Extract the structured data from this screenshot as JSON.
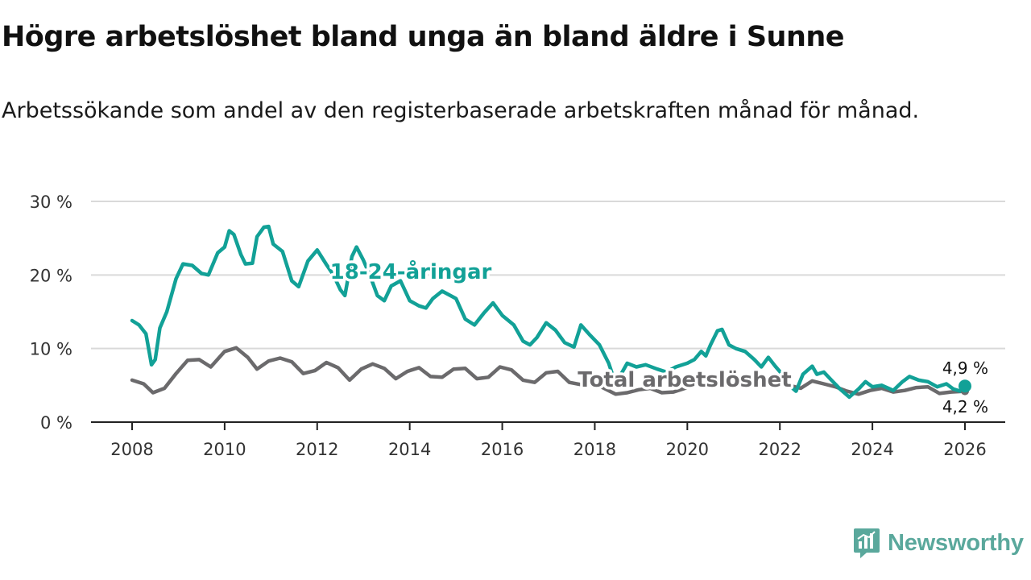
{
  "header": {
    "title": "Högre arbetslöshet bland unga än bland äldre i Sunne",
    "subtitle": "Arbetssökande som andel av den registerbaserade arbetskraften månad för månad."
  },
  "brand": {
    "name": "Newsworthy",
    "color": "#5aa89c"
  },
  "colors": {
    "youth": "#12a197",
    "total": "#6b6a6c",
    "grid": "#d9d9d9",
    "axis": "#222222"
  },
  "chart_data": {
    "type": "line",
    "title": "Högre arbetslöshet bland unga än bland äldre i Sunne",
    "xlabel": "",
    "ylabel": "",
    "xlim": [
      2008,
      2026
    ],
    "ylim": [
      0,
      30
    ],
    "grid": true,
    "x_ticks": [
      2008,
      2010,
      2012,
      2014,
      2016,
      2018,
      2020,
      2022,
      2024,
      2026
    ],
    "x_tick_labels": [
      "2008",
      "2010",
      "2012",
      "2014",
      "2016",
      "2018",
      "2020",
      "2022",
      "2024",
      "2026"
    ],
    "y_ticks": [
      0,
      10,
      20,
      30
    ],
    "y_tick_labels": [
      "0 %",
      "10 %",
      "20 %",
      "30 %"
    ],
    "series": [
      {
        "name": "Total arbetslöshet",
        "label": "Total arbetslöshet",
        "points": [
          [
            2008.0,
            5.7
          ],
          [
            2008.25,
            5.2
          ],
          [
            2008.45,
            4.0
          ],
          [
            2008.7,
            4.6
          ],
          [
            2008.95,
            6.6
          ],
          [
            2009.2,
            8.4
          ],
          [
            2009.45,
            8.5
          ],
          [
            2009.7,
            7.5
          ],
          [
            2010.0,
            9.6
          ],
          [
            2010.25,
            10.1
          ],
          [
            2010.5,
            8.8
          ],
          [
            2010.7,
            7.2
          ],
          [
            2010.95,
            8.3
          ],
          [
            2011.2,
            8.7
          ],
          [
            2011.45,
            8.2
          ],
          [
            2011.7,
            6.6
          ],
          [
            2011.95,
            7.0
          ],
          [
            2012.2,
            8.1
          ],
          [
            2012.45,
            7.4
          ],
          [
            2012.7,
            5.7
          ],
          [
            2012.95,
            7.2
          ],
          [
            2013.2,
            7.9
          ],
          [
            2013.45,
            7.3
          ],
          [
            2013.7,
            5.9
          ],
          [
            2013.95,
            6.9
          ],
          [
            2014.2,
            7.4
          ],
          [
            2014.45,
            6.2
          ],
          [
            2014.7,
            6.1
          ],
          [
            2014.95,
            7.2
          ],
          [
            2015.2,
            7.3
          ],
          [
            2015.45,
            5.9
          ],
          [
            2015.7,
            6.1
          ],
          [
            2015.95,
            7.5
          ],
          [
            2016.2,
            7.1
          ],
          [
            2016.45,
            5.7
          ],
          [
            2016.7,
            5.4
          ],
          [
            2016.95,
            6.7
          ],
          [
            2017.2,
            6.9
          ],
          [
            2017.45,
            5.4
          ],
          [
            2017.7,
            5.1
          ],
          [
            2017.95,
            5.3
          ],
          [
            2018.2,
            4.6
          ],
          [
            2018.45,
            3.8
          ],
          [
            2018.7,
            4.0
          ],
          [
            2018.95,
            4.4
          ],
          [
            2019.2,
            4.6
          ],
          [
            2019.45,
            4.0
          ],
          [
            2019.7,
            4.1
          ],
          [
            2019.95,
            4.6
          ],
          [
            2020.2,
            5.0
          ],
          [
            2020.45,
            4.8
          ],
          [
            2020.7,
            5.4
          ],
          [
            2020.95,
            6.0
          ],
          [
            2021.2,
            5.7
          ],
          [
            2021.45,
            5.2
          ],
          [
            2021.7,
            5.0
          ],
          [
            2021.95,
            5.3
          ],
          [
            2022.2,
            5.0
          ],
          [
            2022.45,
            4.6
          ],
          [
            2022.7,
            5.6
          ],
          [
            2022.95,
            5.2
          ],
          [
            2023.2,
            4.8
          ],
          [
            2023.45,
            4.2
          ],
          [
            2023.7,
            3.8
          ],
          [
            2023.95,
            4.3
          ],
          [
            2024.2,
            4.6
          ],
          [
            2024.45,
            4.1
          ],
          [
            2024.7,
            4.3
          ],
          [
            2024.95,
            4.7
          ],
          [
            2025.2,
            4.8
          ],
          [
            2025.45,
            3.9
          ],
          [
            2025.7,
            4.1
          ],
          [
            2026.0,
            4.2
          ]
        ]
      },
      {
        "name": "18-24-åringar",
        "label": "18-24-åringar",
        "points": [
          [
            2008.0,
            13.8
          ],
          [
            2008.15,
            13.2
          ],
          [
            2008.3,
            12.0
          ],
          [
            2008.42,
            7.8
          ],
          [
            2008.5,
            8.5
          ],
          [
            2008.6,
            12.8
          ],
          [
            2008.75,
            15.0
          ],
          [
            2008.95,
            19.5
          ],
          [
            2009.1,
            21.5
          ],
          [
            2009.3,
            21.3
          ],
          [
            2009.5,
            20.2
          ],
          [
            2009.65,
            20.0
          ],
          [
            2009.85,
            23.0
          ],
          [
            2010.0,
            23.8
          ],
          [
            2010.1,
            26.0
          ],
          [
            2010.2,
            25.5
          ],
          [
            2010.35,
            22.8
          ],
          [
            2010.45,
            21.5
          ],
          [
            2010.6,
            21.6
          ],
          [
            2010.7,
            25.2
          ],
          [
            2010.85,
            26.5
          ],
          [
            2010.95,
            26.6
          ],
          [
            2011.05,
            24.2
          ],
          [
            2011.25,
            23.2
          ],
          [
            2011.45,
            19.2
          ],
          [
            2011.6,
            18.4
          ],
          [
            2011.8,
            21.9
          ],
          [
            2012.0,
            23.4
          ],
          [
            2012.2,
            21.4
          ],
          [
            2012.35,
            20.0
          ],
          [
            2012.5,
            18.0
          ],
          [
            2012.6,
            17.2
          ],
          [
            2012.75,
            22.5
          ],
          [
            2012.85,
            23.8
          ],
          [
            2013.0,
            22.0
          ],
          [
            2013.15,
            19.8
          ],
          [
            2013.3,
            17.2
          ],
          [
            2013.45,
            16.5
          ],
          [
            2013.6,
            18.5
          ],
          [
            2013.8,
            19.2
          ],
          [
            2014.0,
            16.5
          ],
          [
            2014.2,
            15.8
          ],
          [
            2014.35,
            15.5
          ],
          [
            2014.5,
            16.8
          ],
          [
            2014.7,
            17.8
          ],
          [
            2014.85,
            17.3
          ],
          [
            2015.0,
            16.8
          ],
          [
            2015.2,
            14.0
          ],
          [
            2015.4,
            13.2
          ],
          [
            2015.6,
            14.8
          ],
          [
            2015.8,
            16.2
          ],
          [
            2016.0,
            14.5
          ],
          [
            2016.25,
            13.2
          ],
          [
            2016.45,
            11.0
          ],
          [
            2016.6,
            10.5
          ],
          [
            2016.75,
            11.5
          ],
          [
            2016.95,
            13.5
          ],
          [
            2017.15,
            12.5
          ],
          [
            2017.35,
            10.8
          ],
          [
            2017.55,
            10.2
          ],
          [
            2017.7,
            13.2
          ],
          [
            2017.9,
            11.8
          ],
          [
            2018.1,
            10.5
          ],
          [
            2018.3,
            8.0
          ],
          [
            2018.45,
            5.2
          ],
          [
            2018.7,
            8.0
          ],
          [
            2018.9,
            7.5
          ],
          [
            2019.1,
            7.8
          ],
          [
            2019.35,
            7.2
          ],
          [
            2019.55,
            6.8
          ],
          [
            2019.75,
            7.5
          ],
          [
            2020.0,
            8.0
          ],
          [
            2020.15,
            8.5
          ],
          [
            2020.3,
            9.6
          ],
          [
            2020.4,
            9.0
          ],
          [
            2020.5,
            10.5
          ],
          [
            2020.65,
            12.4
          ],
          [
            2020.75,
            12.6
          ],
          [
            2020.9,
            10.5
          ],
          [
            2021.05,
            10.0
          ],
          [
            2021.25,
            9.6
          ],
          [
            2021.45,
            8.5
          ],
          [
            2021.6,
            7.5
          ],
          [
            2021.75,
            8.8
          ],
          [
            2021.9,
            7.6
          ],
          [
            2022.05,
            6.5
          ],
          [
            2022.2,
            5.0
          ],
          [
            2022.35,
            4.2
          ],
          [
            2022.5,
            6.5
          ],
          [
            2022.7,
            7.6
          ],
          [
            2022.8,
            6.5
          ],
          [
            2022.95,
            6.8
          ],
          [
            2023.1,
            5.8
          ],
          [
            2023.3,
            4.5
          ],
          [
            2023.5,
            3.4
          ],
          [
            2023.7,
            4.5
          ],
          [
            2023.85,
            5.5
          ],
          [
            2024.0,
            4.8
          ],
          [
            2024.2,
            5.0
          ],
          [
            2024.45,
            4.3
          ],
          [
            2024.65,
            5.5
          ],
          [
            2024.8,
            6.2
          ],
          [
            2025.0,
            5.7
          ],
          [
            2025.2,
            5.5
          ],
          [
            2025.4,
            4.8
          ],
          [
            2025.6,
            5.2
          ],
          [
            2025.75,
            4.5
          ],
          [
            2025.9,
            4.2
          ],
          [
            2026.0,
            4.9
          ]
        ]
      }
    ],
    "annotations": [
      {
        "series": "18-24-åringar",
        "text": "4,9 %",
        "x": 2026.0,
        "y": 4.9
      },
      {
        "series": "Total arbetslöshet",
        "text": "4,2 %",
        "x": 2026.0,
        "y": 4.2
      }
    ]
  }
}
